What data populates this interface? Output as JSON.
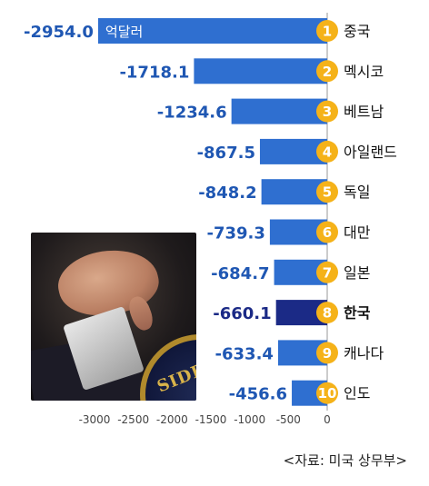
{
  "chart_data": {
    "type": "bar",
    "orientation": "horizontal",
    "ranks": [
      "1",
      "2",
      "3",
      "4",
      "5",
      "6",
      "7",
      "8",
      "9",
      "10"
    ],
    "categories": [
      "중국",
      "멕시코",
      "베트남",
      "아일랜드",
      "독일",
      "대만",
      "일본",
      "한국",
      "캐나다",
      "인도"
    ],
    "values": [
      -2954.0,
      -1718.1,
      -1234.6,
      -867.5,
      -848.2,
      -739.3,
      -684.7,
      -660.1,
      -633.4,
      -456.6
    ],
    "value_labels": [
      "-2954.0",
      "-1718.1",
      "-1234.6",
      "-867.5",
      "-848.2",
      "-739.3",
      "-684.7",
      "-660.1",
      "-633.4",
      "-456.6"
    ],
    "unit_label": "억달러",
    "highlight": "한국",
    "xlim": [
      -3000,
      0
    ],
    "xticks": [
      "-3000",
      "-2500",
      "-2000",
      "-1500",
      "-1000",
      "-500",
      "0"
    ],
    "colors": {
      "bar": "#2f6fd0",
      "bar_highlight": "#1b2a86",
      "value_text": "#1f57b3",
      "value_highlight": "#1b2a86",
      "rank_circle": "#f5b219",
      "axis": "#999999"
    }
  },
  "source": "<자료: 미국 상무부>"
}
